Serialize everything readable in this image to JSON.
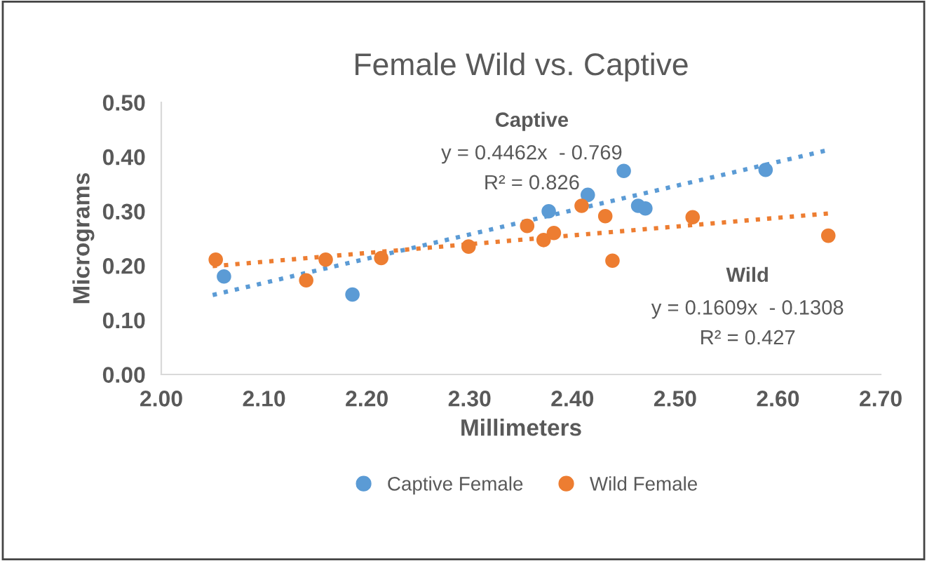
{
  "chart_data": {
    "type": "scatter",
    "title": "Female Wild vs. Captive",
    "xlabel": "Millimeters",
    "ylabel": "Micrograms",
    "xlim": [
      2.0,
      2.7
    ],
    "xticks": [
      {
        "value": 2.0,
        "label": "2.00"
      },
      {
        "value": 2.1,
        "label": "2.10"
      },
      {
        "value": 2.2,
        "label": "2.20"
      },
      {
        "value": 2.3,
        "label": "2.30"
      },
      {
        "value": 2.4,
        "label": "2.40"
      },
      {
        "value": 2.5,
        "label": "2.50"
      },
      {
        "value": 2.6,
        "label": "2.60"
      },
      {
        "value": 2.7,
        "label": "2.70"
      }
    ],
    "ylim": [
      0,
      0.5
    ],
    "yticks": [
      {
        "value": 0,
        "label": "0.00"
      },
      {
        "value": 0.1,
        "label": "0.10"
      },
      {
        "value": 0.2,
        "label": "0.20"
      },
      {
        "value": 0.3,
        "label": "0.30"
      },
      {
        "value": 0.4,
        "label": "0.40"
      },
      {
        "value": 0.5,
        "label": "0.50"
      }
    ],
    "grid": false,
    "legend": "bottom",
    "marker": "circle",
    "series": [
      {
        "name": "Captive Female",
        "color": "#5b9bd5",
        "x": [
          2.061,
          2.186,
          2.377,
          2.415,
          2.45,
          2.464,
          2.471,
          2.588
        ],
        "values": [
          0.18,
          0.147,
          0.3,
          0.33,
          0.374,
          0.31,
          0.305,
          0.376
        ]
      },
      {
        "name": "Wild Female",
        "color": "#ed7d31",
        "x": [
          2.053,
          2.141,
          2.16,
          2.214,
          2.299,
          2.356,
          2.372,
          2.382,
          2.409,
          2.432,
          2.439,
          2.517,
          2.649
        ],
        "values": [
          0.211,
          0.173,
          0.211,
          0.214,
          0.235,
          0.273,
          0.247,
          0.26,
          0.31,
          0.291,
          0.209,
          0.289,
          0.255
        ]
      },
      {
        "type": "line",
        "line_style": "dotted",
        "marker": "none",
        "color": "#5b9bd5",
        "x": [
          2.05,
          2.65
        ],
        "values": [
          0.146,
          0.413
        ]
      },
      {
        "type": "line",
        "line_style": "dotted",
        "marker": "none",
        "color": "#ed7d31",
        "x": [
          2.05,
          2.65
        ],
        "values": [
          0.199,
          0.296
        ]
      }
    ],
    "annotations": [
      "Captive",
      "y = 0.4462x  - 0.769",
      "R² = 0.826",
      "Wild",
      "y = 0.1609x  - 0.1308",
      "R² = 0.427"
    ]
  }
}
